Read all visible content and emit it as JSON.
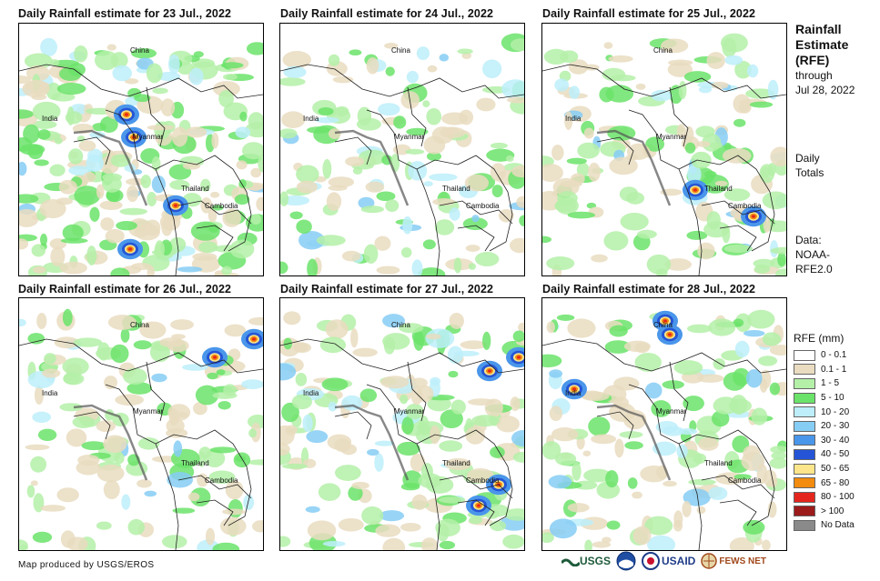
{
  "panels": [
    {
      "title": "Daily Rainfall estimate for 23 Jul., 2022",
      "seed": 23,
      "wet": 0.95,
      "hot": [
        [
          118,
          100
        ],
        [
          126,
          125
        ],
        [
          172,
          200
        ],
        [
          122,
          248
        ]
      ]
    },
    {
      "title": "Daily Rainfall estimate for 24 Jul., 2022",
      "seed": 24,
      "wet": 0.55,
      "hot": []
    },
    {
      "title": "Daily Rainfall estimate for 25 Jul., 2022",
      "seed": 25,
      "wet": 0.6,
      "hot": [
        [
          168,
          183
        ],
        [
          232,
          212
        ]
      ]
    },
    {
      "title": "Daily Rainfall estimate for 26 Jul., 2022",
      "seed": 26,
      "wet": 0.55,
      "hot": [
        [
          215,
          65
        ],
        [
          258,
          45
        ]
      ]
    },
    {
      "title": "Daily Rainfall estimate for 27 Jul., 2022",
      "seed": 27,
      "wet": 0.65,
      "hot": [
        [
          230,
          80
        ],
        [
          240,
          205
        ],
        [
          218,
          228
        ],
        [
          262,
          65
        ]
      ]
    },
    {
      "title": "Daily Rainfall estimate for 28 Jul., 2022",
      "seed": 28,
      "wet": 0.6,
      "hot": [
        [
          135,
          25
        ],
        [
          140,
          40
        ],
        [
          35,
          100
        ]
      ]
    }
  ],
  "places": {
    "china": "China",
    "india": "India",
    "myanmar": "Myanmar",
    "thailand": "Thailand",
    "cambodia": "Cambodia"
  },
  "side": {
    "title1": "Rainfall",
    "title2": "Estimate",
    "title3": "(RFE)",
    "through": "through",
    "date": "Jul 28, 2022",
    "daily1": "Daily",
    "daily2": "Totals",
    "data1": "Data:",
    "data2": "NOAA-",
    "data3": "RFE2.0"
  },
  "legend": {
    "title": "RFE (mm)",
    "items": [
      {
        "label": "0 - 0.1",
        "color": "#ffffff"
      },
      {
        "label": "0.1 - 1",
        "color": "#e9dcc0"
      },
      {
        "label": "1 - 5",
        "color": "#b4f0a8"
      },
      {
        "label": "5 - 10",
        "color": "#6be36a"
      },
      {
        "label": "10 - 20",
        "color": "#bdeefa"
      },
      {
        "label": "20 - 30",
        "color": "#86cdf5"
      },
      {
        "label": "30 - 40",
        "color": "#4a96ea"
      },
      {
        "label": "40 - 50",
        "color": "#2555d6"
      },
      {
        "label": "50 - 65",
        "color": "#fce58a"
      },
      {
        "label": "65 - 80",
        "color": "#f28b0e"
      },
      {
        "label": "80 - 100",
        "color": "#e5261e"
      },
      {
        "label": "> 100",
        "color": "#9c1b1b"
      },
      {
        "label": "No Data",
        "color": "#8a8a8a"
      }
    ]
  },
  "credit": "Map produced by USGS/EROS",
  "logos": {
    "usgs": "USGS",
    "usaid": "USAID",
    "fewsnet": "FEWS NET"
  }
}
